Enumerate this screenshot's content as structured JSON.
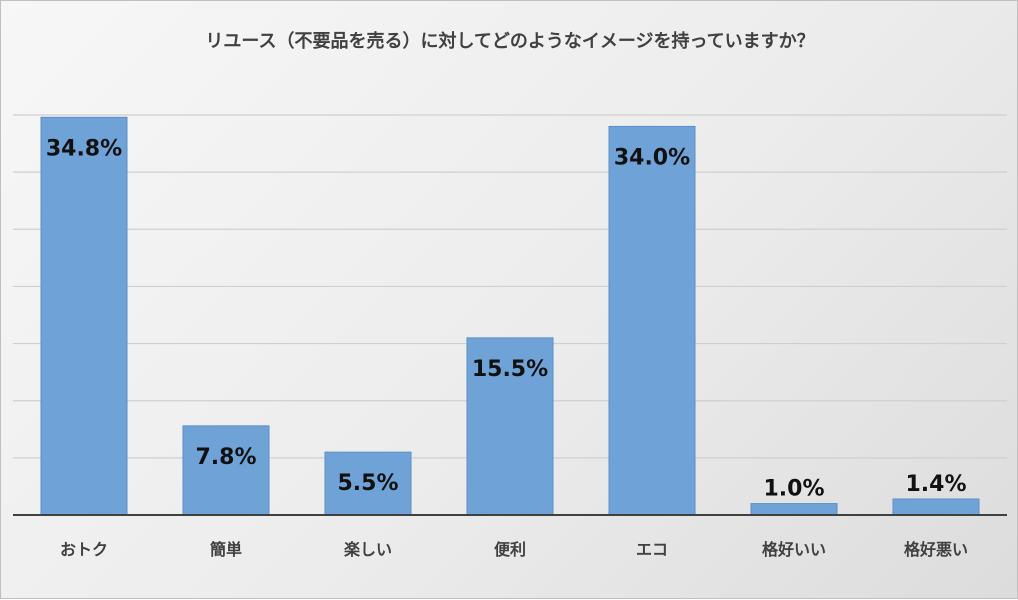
{
  "chart_data": {
    "type": "bar",
    "title": "リユース（不要品を売る）に対してどのようなイメージを持っていますか？",
    "categories": [
      "おトク",
      "簡単",
      "楽しい",
      "便利",
      "エコ",
      "格好いい",
      "格好悪い"
    ],
    "values": [
      34.8,
      7.8,
      5.5,
      15.5,
      34.0,
      1.0,
      1.4
    ],
    "value_labels": [
      "34.8%",
      "7.8%",
      "5.5%",
      "15.5%",
      "34.0%",
      "1.0%",
      "1.4%"
    ],
    "xlabel": "",
    "ylabel": "",
    "ylim": [
      0,
      35
    ],
    "grid": true,
    "legend": "none",
    "colors": {
      "bar": "#6fa3d8",
      "bar_edge": "#5b8fc6",
      "grid": "#cfcfcf",
      "axis": "#404040"
    }
  }
}
